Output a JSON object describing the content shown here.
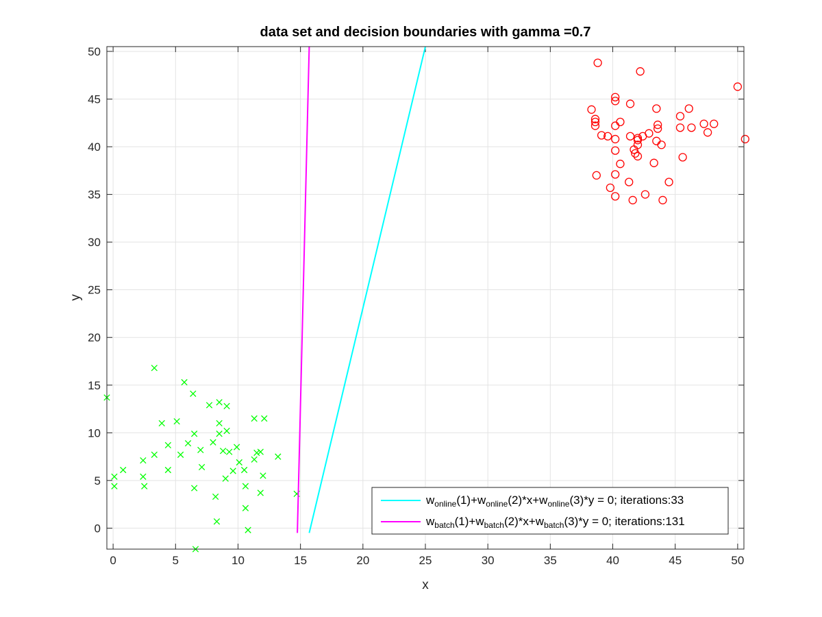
{
  "chart_data": {
    "type": "scatter",
    "title": "data set and decision boundaries with gamma =0.7",
    "xlabel": "x",
    "ylabel": "y",
    "xlim": [
      -0.5,
      50.5
    ],
    "ylim": [
      -2.2,
      50.5
    ],
    "xticks": [
      0,
      5,
      10,
      15,
      20,
      25,
      30,
      35,
      40,
      45,
      50
    ],
    "yticks": [
      0,
      5,
      10,
      15,
      20,
      25,
      30,
      35,
      40,
      45,
      50
    ],
    "grid": true,
    "legend_location": "bottom-right",
    "class_x": {
      "marker": "x",
      "color": "#00ff00",
      "points": [
        [
          -0.5,
          13.7
        ],
        [
          0.1,
          5.4
        ],
        [
          0.1,
          4.4
        ],
        [
          0.8,
          6.1
        ],
        [
          2.4,
          7.1
        ],
        [
          2.4,
          5.4
        ],
        [
          2.5,
          4.4
        ],
        [
          3.3,
          16.8
        ],
        [
          3.3,
          7.7
        ],
        [
          3.9,
          11.0
        ],
        [
          4.4,
          6.1
        ],
        [
          4.4,
          8.7
        ],
        [
          5.1,
          11.2
        ],
        [
          5.4,
          7.7
        ],
        [
          5.7,
          15.3
        ],
        [
          6.0,
          8.9
        ],
        [
          6.4,
          14.1
        ],
        [
          6.5,
          9.9
        ],
        [
          6.5,
          4.2
        ],
        [
          6.6,
          -2.2
        ],
        [
          7.0,
          8.2
        ],
        [
          7.1,
          6.4
        ],
        [
          7.7,
          12.9
        ],
        [
          8.0,
          9.0
        ],
        [
          8.2,
          3.3
        ],
        [
          8.3,
          0.7
        ],
        [
          8.5,
          13.2
        ],
        [
          8.5,
          11.0
        ],
        [
          8.5,
          9.9
        ],
        [
          8.8,
          8.1
        ],
        [
          9.0,
          5.2
        ],
        [
          9.1,
          12.8
        ],
        [
          9.1,
          10.2
        ],
        [
          9.3,
          8.0
        ],
        [
          9.6,
          6.0
        ],
        [
          9.9,
          8.5
        ],
        [
          10.1,
          6.9
        ],
        [
          10.5,
          6.1
        ],
        [
          10.6,
          2.1
        ],
        [
          10.6,
          4.4
        ],
        [
          10.8,
          -0.2
        ],
        [
          11.3,
          11.5
        ],
        [
          11.3,
          7.2
        ],
        [
          11.5,
          7.9
        ],
        [
          11.8,
          8.0
        ],
        [
          11.8,
          3.7
        ],
        [
          12.0,
          5.5
        ],
        [
          12.1,
          11.5
        ],
        [
          13.2,
          7.5
        ],
        [
          14.7,
          3.6
        ]
      ]
    },
    "class_o": {
      "marker": "o",
      "color": "#ff0000",
      "points": [
        [
          38.8,
          48.8
        ],
        [
          42.2,
          47.9
        ],
        [
          50.0,
          46.3
        ],
        [
          40.2,
          45.2
        ],
        [
          40.2,
          44.8
        ],
        [
          41.4,
          44.5
        ],
        [
          38.3,
          43.9
        ],
        [
          43.5,
          44.0
        ],
        [
          46.1,
          44.0
        ],
        [
          38.6,
          42.9
        ],
        [
          38.6,
          42.6
        ],
        [
          38.6,
          42.2
        ],
        [
          40.6,
          42.6
        ],
        [
          40.2,
          42.2
        ],
        [
          45.4,
          43.2
        ],
        [
          45.4,
          42.0
        ],
        [
          46.3,
          42.0
        ],
        [
          47.3,
          42.4
        ],
        [
          48.1,
          42.4
        ],
        [
          47.6,
          41.5
        ],
        [
          43.6,
          42.3
        ],
        [
          43.6,
          41.9
        ],
        [
          42.9,
          41.4
        ],
        [
          39.1,
          41.2
        ],
        [
          39.6,
          41.1
        ],
        [
          41.4,
          41.1
        ],
        [
          42.4,
          41.1
        ],
        [
          42.0,
          40.9
        ],
        [
          42.0,
          40.7
        ],
        [
          40.2,
          40.8
        ],
        [
          43.5,
          40.6
        ],
        [
          43.9,
          40.2
        ],
        [
          42.0,
          40.2
        ],
        [
          50.6,
          40.8
        ],
        [
          41.7,
          39.7
        ],
        [
          40.2,
          39.6
        ],
        [
          41.8,
          39.3
        ],
        [
          42.0,
          39.0
        ],
        [
          45.6,
          38.9
        ],
        [
          43.3,
          38.3
        ],
        [
          40.6,
          38.2
        ],
        [
          38.7,
          37.0
        ],
        [
          40.2,
          37.1
        ],
        [
          41.3,
          36.3
        ],
        [
          44.5,
          36.3
        ],
        [
          39.8,
          35.7
        ],
        [
          42.6,
          35.0
        ],
        [
          40.2,
          34.8
        ],
        [
          41.6,
          34.4
        ],
        [
          44.0,
          34.4
        ]
      ]
    },
    "series": [
      {
        "name": "w_online line",
        "color": "#00ffff",
        "x": [
          15.7,
          25.0
        ],
        "y": [
          -0.5,
          50.5
        ]
      },
      {
        "name": "w_batch line",
        "color": "#ff00ff",
        "x": [
          14.75,
          15.7
        ],
        "y": [
          -0.5,
          50.5
        ]
      }
    ]
  },
  "legend": {
    "online": {
      "w1": "w",
      "s1": "online",
      "t1": "(1)+w",
      "s2": "online",
      "t2": "(2)*x+w",
      "s3": "online",
      "t3": "(3)*y = 0; iterations:33"
    },
    "batch": {
      "w1": "w",
      "s1": "batch",
      "t1": "(1)+w",
      "s2": "batch",
      "t2": "(2)*x+w",
      "s3": "batch",
      "t3": "(3)*y = 0; iterations:131"
    }
  }
}
